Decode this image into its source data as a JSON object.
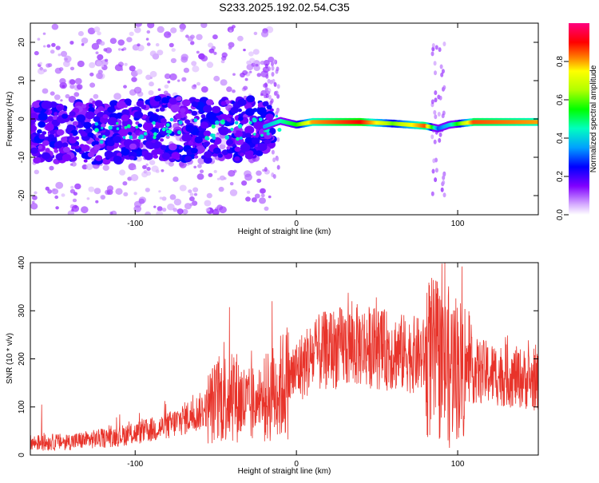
{
  "title": "S233.2025.192.02.54.C35",
  "chart_data": [
    {
      "type": "heatmap",
      "xlabel": "Height of straight line (km)",
      "ylabel": "Frequency (Hz)",
      "xlim": [
        -165,
        150
      ],
      "ylim": [
        -25,
        25
      ],
      "xticks": [
        -100,
        0,
        100
      ],
      "yticks": [
        -20,
        -10,
        0,
        10,
        20
      ],
      "colorbar": {
        "label": "Normalized spectral amplitude",
        "range": [
          0,
          1
        ],
        "ticks": [
          "0.0",
          "0.2",
          "0.4",
          "0.6",
          "0.8"
        ]
      },
      "ridge": [
        {
          "x": -165,
          "f": -4,
          "amp": 0.2
        },
        {
          "x": -120,
          "f": -3.5,
          "amp": 0.25
        },
        {
          "x": -80,
          "f": -2.5,
          "amp": 0.3
        },
        {
          "x": -40,
          "f": -3,
          "amp": 0.3
        },
        {
          "x": -20,
          "f": -2,
          "amp": 0.35
        },
        {
          "x": -10,
          "f": -0.5,
          "amp": 0.45
        },
        {
          "x": 0,
          "f": -1.5,
          "amp": 0.55
        },
        {
          "x": 10,
          "f": -0.8,
          "amp": 0.8
        },
        {
          "x": 40,
          "f": -0.8,
          "amp": 0.9
        },
        {
          "x": 60,
          "f": -1.2,
          "amp": 0.6
        },
        {
          "x": 80,
          "f": -1.8,
          "amp": 0.85
        },
        {
          "x": 88,
          "f": -2.5,
          "amp": 0.3
        },
        {
          "x": 95,
          "f": -1.5,
          "amp": 0.4
        },
        {
          "x": 110,
          "f": -0.8,
          "amp": 0.85
        },
        {
          "x": 150,
          "f": -0.8,
          "amp": 0.8
        }
      ]
    },
    {
      "type": "line",
      "xlabel": "Height of straight line (km)",
      "ylabel": "SNR (10 * v/v)",
      "xlim": [
        -165,
        150
      ],
      "ylim": [
        0,
        400
      ],
      "xticks": [
        -100,
        0,
        100
      ],
      "yticks": [
        0,
        100,
        200,
        300,
        400
      ],
      "color": "#e8332a",
      "envelope": {
        "x": [
          -165,
          -140,
          -120,
          -100,
          -80,
          -60,
          -50,
          -40,
          -30,
          -20,
          -10,
          0,
          10,
          20,
          30,
          40,
          50,
          60,
          70,
          80,
          90,
          100,
          110,
          120,
          130,
          140,
          150
        ],
        "y": [
          25,
          28,
          35,
          45,
          60,
          90,
          110,
          130,
          100,
          115,
          140,
          175,
          205,
          220,
          225,
          228,
          222,
          215,
          210,
          205,
          195,
          185,
          175,
          170,
          165,
          160,
          150
        ]
      },
      "spikes": [
        {
          "x": -158,
          "y": 105
        },
        {
          "x": -45,
          "y": 235
        },
        {
          "x": -40,
          "y": 210
        },
        {
          "x": -15,
          "y": 320
        },
        {
          "x": -5,
          "y": 255
        },
        {
          "x": 88,
          "y": 325
        },
        {
          "x": 92,
          "y": 400
        },
        {
          "x": 95,
          "y": 15
        },
        {
          "x": 102,
          "y": 260
        }
      ]
    }
  ]
}
